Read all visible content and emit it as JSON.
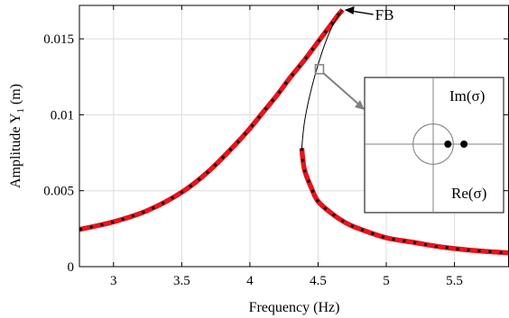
{
  "chart_data": {
    "type": "line",
    "xlabel": "Frequency (Hz)",
    "ylabel_main": "Amplitude Y",
    "ylabel_sub": "1",
    "ylabel_unit": " (m)",
    "xlim": [
      2.75,
      5.9
    ],
    "ylim": [
      0,
      0.0172
    ],
    "xticks": [
      3,
      3.5,
      4,
      4.5,
      5,
      5.5
    ],
    "xtick_labels": [
      "3",
      "3.5",
      "4",
      "4.5",
      "5",
      "5.5"
    ],
    "yticks": [
      0,
      0.005,
      0.01,
      0.015
    ],
    "ytick_labels": [
      "0",
      "0.005",
      "0.01",
      "0.015"
    ],
    "grid": true,
    "colors": {
      "stable": "#e8141b",
      "dashed": "#000000",
      "unstable": "#000000",
      "inset": "#808080",
      "pointer": "#808080"
    },
    "series": [
      {
        "style": "stable",
        "x": [
          2.75,
          3.0,
          3.25,
          3.5,
          3.7,
          3.9,
          4.0,
          4.1,
          4.2,
          4.3,
          4.4,
          4.5,
          4.55,
          4.6,
          4.65,
          4.68
        ],
        "y": [
          0.00245,
          0.00295,
          0.0037,
          0.0049,
          0.0063,
          0.0081,
          0.0091,
          0.0102,
          0.0113,
          0.0125,
          0.0136,
          0.0148,
          0.0154,
          0.016,
          0.0166,
          0.0169
        ]
      },
      {
        "style": "unstable",
        "x": [
          4.68,
          4.62,
          4.56,
          4.5,
          4.44,
          4.4,
          4.38
        ],
        "y": [
          0.0169,
          0.0161,
          0.0149,
          0.0133,
          0.0113,
          0.0095,
          0.0078
        ]
      },
      {
        "style": "stable",
        "x": [
          4.38,
          4.4,
          4.45,
          4.5,
          4.6,
          4.7,
          4.8,
          5.0,
          5.2,
          5.4,
          5.6,
          5.9
        ],
        "y": [
          0.0078,
          0.0064,
          0.0052,
          0.0043,
          0.0035,
          0.0029,
          0.0025,
          0.0019,
          0.0016,
          0.0013,
          0.0011,
          0.0009
        ]
      }
    ],
    "annotation": {
      "label": "FB",
      "x": 4.68,
      "y": 0.0169
    },
    "marker": {
      "x": 4.51,
      "y": 0.013
    },
    "inset": {
      "im_label": "Im(σ)",
      "re_label": "Re(σ)",
      "unit_circle_radius": 1.0,
      "axis_range": [
        -2.0,
        2.0
      ],
      "eigenvalues": [
        [
          0.55,
          0.0
        ],
        [
          1.15,
          0.0
        ]
      ]
    }
  }
}
